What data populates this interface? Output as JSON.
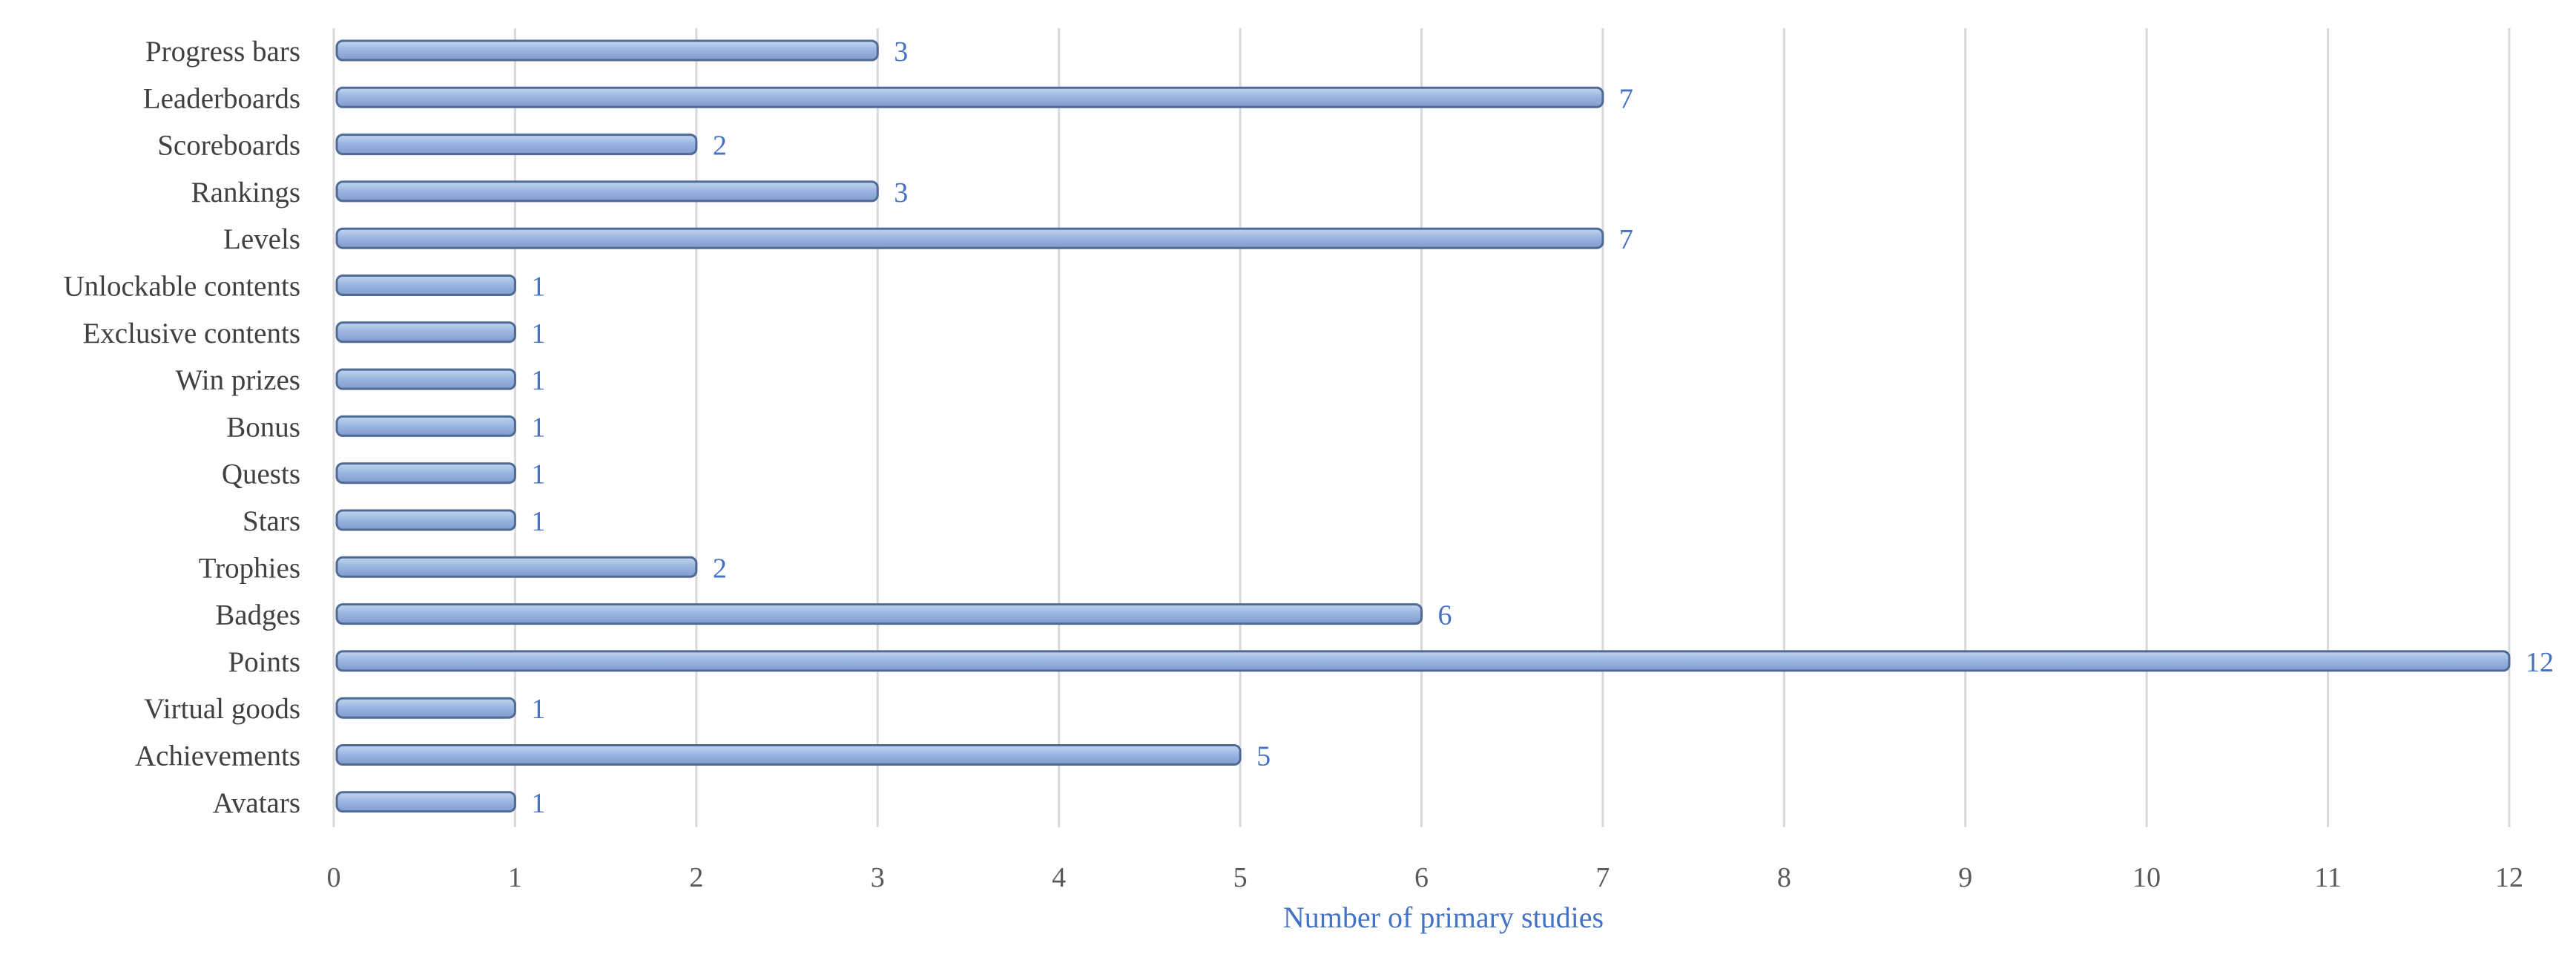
{
  "chart_data": {
    "type": "bar",
    "orientation": "horizontal",
    "title": "",
    "xlabel": "Number of primary studies",
    "ylabel": "",
    "xlim": [
      0,
      12
    ],
    "xticks": [
      0,
      1,
      2,
      3,
      4,
      5,
      6,
      7,
      8,
      9,
      10,
      11,
      12
    ],
    "grid": "vertical",
    "data_labels": true,
    "categories": [
      "Progress bars",
      "Leaderboards",
      "Scoreboards",
      "Rankings",
      "Levels",
      "Unlockable contents",
      "Exclusive contents",
      "Win prizes",
      "Bonus",
      "Quests",
      "Stars",
      "Trophies",
      "Badges",
      "Points",
      "Virtual goods",
      "Achievements",
      "Avatars"
    ],
    "values": [
      3,
      7,
      2,
      3,
      7,
      1,
      1,
      1,
      1,
      1,
      1,
      2,
      6,
      12,
      1,
      5,
      1
    ],
    "colors": {
      "bar_fill": "#98b4e0",
      "bar_stroke": "#4f6a95",
      "data_label": "#4472c4",
      "axis_title": "#4472c4",
      "tick_label": "#595959",
      "category_label": "#404040",
      "gridline": "#d9d9d9"
    }
  }
}
